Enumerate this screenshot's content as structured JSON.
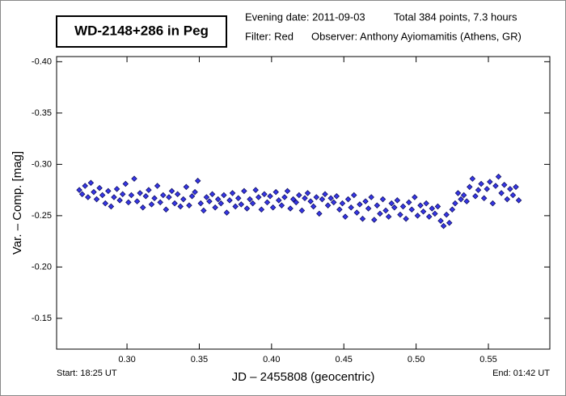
{
  "chart_data": {
    "type": "scatter",
    "title": "WD-2148+286 in Peg",
    "info": [
      "Evening date: 2011-09-03",
      "Total 384 points, 7.3 hours",
      "Filter: Red",
      "Observer: Anthony Ayiomamitis (Athens, GR)"
    ],
    "start_label": "Start: 18:25 UT",
    "end_label": "End: 01:42 UT",
    "x_label": "JD – 2455808  (geocentric)",
    "y_label": "Var. – Comp.  [mag]",
    "color": "#3636e8",
    "xlim": [
      0.2513,
      0.5925
    ],
    "ylim": [
      -0.405,
      -0.12
    ],
    "y_inverted": true,
    "xticks": [
      {
        "value": 0.3,
        "label": "0.30"
      },
      {
        "value": 0.35,
        "label": "0.35"
      },
      {
        "value": 0.4,
        "label": "0.40"
      },
      {
        "value": 0.45,
        "label": "0.45"
      },
      {
        "value": 0.5,
        "label": "0.50"
      },
      {
        "value": 0.55,
        "label": "0.55"
      }
    ],
    "yticks": [
      {
        "value": -0.4,
        "label": "-0.40"
      },
      {
        "value": -0.35,
        "label": "-0.35"
      },
      {
        "value": -0.3,
        "label": "-0.30"
      },
      {
        "value": -0.25,
        "label": "-0.25"
      },
      {
        "value": -0.2,
        "label": "-0.20"
      },
      {
        "value": -0.15,
        "label": "-0.15"
      }
    ],
    "x": [
      0.267,
      0.269,
      0.271,
      0.273,
      0.275,
      0.277,
      0.279,
      0.281,
      0.283,
      0.285,
      0.287,
      0.289,
      0.291,
      0.293,
      0.295,
      0.297,
      0.299,
      0.301,
      0.303,
      0.305,
      0.307,
      0.309,
      0.311,
      0.313,
      0.315,
      0.317,
      0.319,
      0.321,
      0.323,
      0.325,
      0.327,
      0.329,
      0.331,
      0.333,
      0.335,
      0.337,
      0.339,
      0.341,
      0.343,
      0.345,
      0.347,
      0.349,
      0.351,
      0.353,
      0.355,
      0.357,
      0.359,
      0.361,
      0.363,
      0.365,
      0.367,
      0.369,
      0.371,
      0.373,
      0.375,
      0.377,
      0.379,
      0.381,
      0.383,
      0.385,
      0.387,
      0.389,
      0.391,
      0.393,
      0.395,
      0.397,
      0.399,
      0.401,
      0.403,
      0.405,
      0.407,
      0.409,
      0.411,
      0.413,
      0.415,
      0.417,
      0.419,
      0.421,
      0.423,
      0.425,
      0.427,
      0.429,
      0.431,
      0.433,
      0.435,
      0.437,
      0.439,
      0.441,
      0.443,
      0.445,
      0.447,
      0.449,
      0.451,
      0.453,
      0.455,
      0.457,
      0.459,
      0.461,
      0.463,
      0.465,
      0.467,
      0.469,
      0.471,
      0.473,
      0.475,
      0.477,
      0.479,
      0.481,
      0.483,
      0.485,
      0.487,
      0.489,
      0.491,
      0.493,
      0.495,
      0.497,
      0.499,
      0.501,
      0.503,
      0.505,
      0.507,
      0.509,
      0.511,
      0.513,
      0.515,
      0.517,
      0.519,
      0.521,
      0.523,
      0.525,
      0.527,
      0.529,
      0.531,
      0.533,
      0.535,
      0.537,
      0.539,
      0.541,
      0.543,
      0.545,
      0.547,
      0.549,
      0.551,
      0.553,
      0.555,
      0.557,
      0.559,
      0.561,
      0.563,
      0.565,
      0.567,
      0.569,
      0.571
    ],
    "values": [
      -0.275,
      -0.271,
      -0.279,
      -0.268,
      -0.282,
      -0.273,
      -0.266,
      -0.277,
      -0.27,
      -0.262,
      -0.274,
      -0.259,
      -0.268,
      -0.276,
      -0.265,
      -0.271,
      -0.281,
      -0.263,
      -0.27,
      -0.286,
      -0.264,
      -0.272,
      -0.258,
      -0.269,
      -0.275,
      -0.261,
      -0.267,
      -0.279,
      -0.263,
      -0.27,
      -0.256,
      -0.268,
      -0.274,
      -0.262,
      -0.271,
      -0.259,
      -0.266,
      -0.278,
      -0.26,
      -0.269,
      -0.273,
      -0.284,
      -0.262,
      -0.255,
      -0.268,
      -0.264,
      -0.271,
      -0.258,
      -0.266,
      -0.262,
      -0.27,
      -0.253,
      -0.265,
      -0.272,
      -0.259,
      -0.267,
      -0.261,
      -0.274,
      -0.257,
      -0.266,
      -0.262,
      -0.275,
      -0.268,
      -0.256,
      -0.271,
      -0.263,
      -0.269,
      -0.258,
      -0.273,
      -0.265,
      -0.26,
      -0.268,
      -0.274,
      -0.257,
      -0.266,
      -0.263,
      -0.27,
      -0.255,
      -0.267,
      -0.272,
      -0.264,
      -0.259,
      -0.268,
      -0.252,
      -0.266,
      -0.271,
      -0.26,
      -0.267,
      -0.263,
      -0.269,
      -0.256,
      -0.262,
      -0.249,
      -0.266,
      -0.258,
      -0.27,
      -0.253,
      -0.261,
      -0.247,
      -0.264,
      -0.257,
      -0.268,
      -0.246,
      -0.26,
      -0.252,
      -0.266,
      -0.255,
      -0.249,
      -0.262,
      -0.258,
      -0.265,
      -0.251,
      -0.259,
      -0.247,
      -0.263,
      -0.256,
      -0.268,
      -0.25,
      -0.26,
      -0.254,
      -0.262,
      -0.249,
      -0.257,
      -0.252,
      -0.259,
      -0.245,
      -0.24,
      -0.251,
      -0.243,
      -0.256,
      -0.262,
      -0.272,
      -0.266,
      -0.27,
      -0.264,
      -0.278,
      -0.286,
      -0.269,
      -0.275,
      -0.281,
      -0.267,
      -0.276,
      -0.283,
      -0.262,
      -0.279,
      -0.288,
      -0.272,
      -0.28,
      -0.266,
      -0.276,
      -0.27,
      -0.278,
      -0.265
    ]
  }
}
